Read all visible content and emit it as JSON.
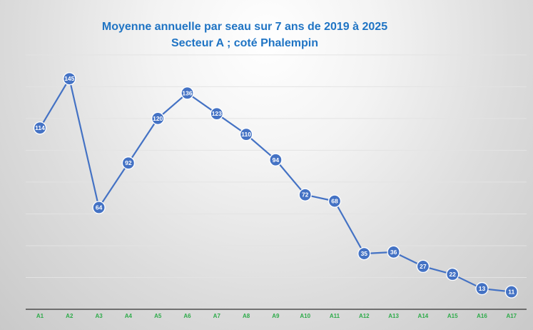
{
  "colors": {
    "title": "#1f74c4",
    "line": "#4472c4",
    "marker_fill": "#4472c4",
    "marker_stroke": "#ffffff",
    "tick_label": "#2eab4a",
    "gridline": "#e3e3e3",
    "axis": "#333333"
  },
  "chart_data": {
    "type": "line",
    "title": "Moyenne annuelle par seau sur 7 ans de 2019 à 2025",
    "subtitle": "Secteur A ; coté Phalempin",
    "categories": [
      "A1",
      "A2",
      "A3",
      "A4",
      "A5",
      "A6",
      "A7",
      "A8",
      "A9",
      "A10",
      "A11",
      "A12",
      "A13",
      "A14",
      "A15",
      "A16",
      "A17"
    ],
    "series": [
      {
        "values": [
          114,
          145,
          64,
          92,
          120,
          136,
          123,
          110,
          94,
          72,
          68,
          35,
          36,
          27,
          22,
          13,
          11
        ]
      }
    ],
    "data_labels": true,
    "ylim": [
      0,
      160
    ],
    "grid": true,
    "legend": "none",
    "xlabel": "",
    "ylabel": ""
  }
}
